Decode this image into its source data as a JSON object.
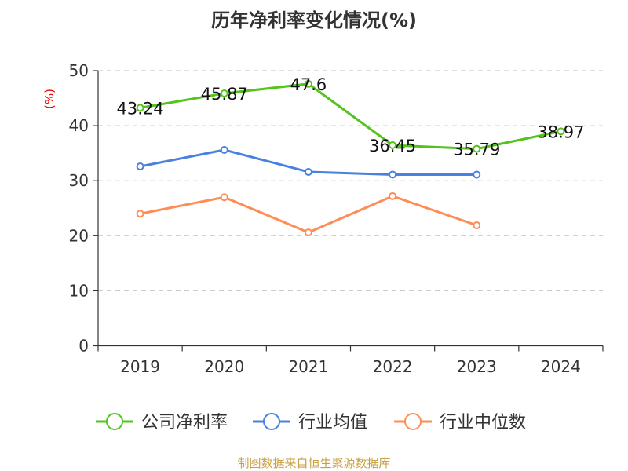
{
  "chart_data": {
    "type": "line",
    "title": "历年净利率变化情况(%)",
    "ylabel": "(%)",
    "xlabel": "",
    "categories": [
      "2019",
      "2020",
      "2021",
      "2022",
      "2023",
      "2024"
    ],
    "ylim": [
      0,
      50
    ],
    "yticks": [
      0,
      10,
      20,
      30,
      40,
      50
    ],
    "grid": true,
    "legend_position": "bottom",
    "series": [
      {
        "name": "公司净利率",
        "color": "#52c41a",
        "values": [
          43.24,
          45.87,
          47.6,
          36.45,
          35.79,
          38.97
        ],
        "labels": [
          "43.24",
          "45.87",
          "47.6",
          "36.45",
          "35.79",
          "38.97"
        ]
      },
      {
        "name": "行业均值",
        "color": "#4a80e0",
        "values": [
          32.6,
          35.6,
          31.6,
          31.1,
          31.1,
          null
        ]
      },
      {
        "name": "行业中位数",
        "color": "#ff8c55",
        "values": [
          24.0,
          27.0,
          20.6,
          27.2,
          21.9,
          null
        ]
      }
    ]
  },
  "source": "制图数据来自恒生聚源数据库"
}
